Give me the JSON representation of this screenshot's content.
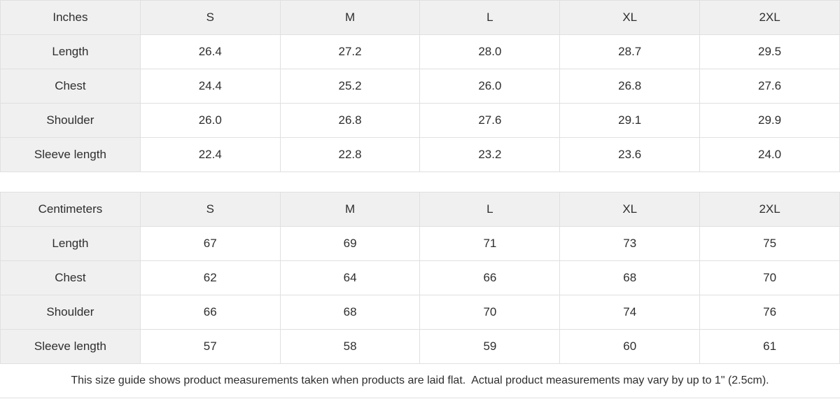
{
  "colors": {
    "header_bg": "#f0f0f0",
    "border": "#e0e0e0",
    "text": "#2e2e2e",
    "background": "#ffffff"
  },
  "tables": [
    {
      "unit_label": "Inches",
      "sizes": [
        "S",
        "M",
        "L",
        "XL",
        "2XL"
      ],
      "rows": [
        {
          "label": "Length",
          "values": [
            "26.4",
            "27.2",
            "28.0",
            "28.7",
            "29.5"
          ]
        },
        {
          "label": "Chest",
          "values": [
            "24.4",
            "25.2",
            "26.0",
            "26.8",
            "27.6"
          ]
        },
        {
          "label": "Shoulder",
          "values": [
            "26.0",
            "26.8",
            "27.6",
            "29.1",
            "29.9"
          ]
        },
        {
          "label": "Sleeve length",
          "values": [
            "22.4",
            "22.8",
            "23.2",
            "23.6",
            "24.0"
          ]
        }
      ]
    },
    {
      "unit_label": "Centimeters",
      "sizes": [
        "S",
        "M",
        "L",
        "XL",
        "2XL"
      ],
      "rows": [
        {
          "label": "Length",
          "values": [
            "67",
            "69",
            "71",
            "73",
            "75"
          ]
        },
        {
          "label": "Chest",
          "values": [
            "62",
            "64",
            "66",
            "68",
            "70"
          ]
        },
        {
          "label": "Shoulder",
          "values": [
            "66",
            "68",
            "70",
            "74",
            "76"
          ]
        },
        {
          "label": "Sleeve length",
          "values": [
            "57",
            "58",
            "59",
            "60",
            "61"
          ]
        }
      ]
    }
  ],
  "footer": {
    "note": "This size guide shows product measurements taken when products are laid flat.  Actual product measurements may vary by up to 1\" (2.5cm)."
  }
}
